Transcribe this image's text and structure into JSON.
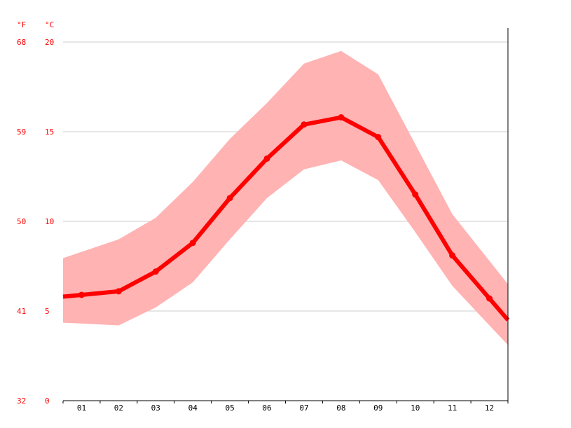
{
  "chart_data": {
    "type": "line",
    "unit_labels": {
      "fahrenheit": "°F",
      "celsius": "°C"
    },
    "y_ticks_celsius": [
      "0",
      "5",
      "10",
      "15",
      "20"
    ],
    "y_ticks_fahrenheit": [
      "32",
      "41",
      "50",
      "59",
      "68"
    ],
    "ylim": [
      0,
      20
    ],
    "categories": [
      "01",
      "02",
      "03",
      "04",
      "05",
      "06",
      "07",
      "08",
      "09",
      "10",
      "11",
      "12"
    ],
    "series": [
      {
        "values": [
          5.9,
          6.1,
          7.2,
          8.8,
          11.3,
          13.5,
          15.4,
          15.8,
          14.7,
          11.5,
          8.1,
          5.7
        ]
      }
    ],
    "range_band": {
      "max": [
        8.3,
        9.0,
        10.2,
        12.2,
        14.6,
        16.6,
        18.8,
        19.5,
        18.2,
        14.3,
        10.4,
        7.8
      ],
      "min": [
        4.3,
        4.2,
        5.2,
        6.6,
        9.0,
        11.3,
        12.9,
        13.4,
        12.3,
        9.4,
        6.4,
        4.2
      ]
    },
    "grid": true,
    "colors": {
      "line": "#ff0000",
      "band": "#ffb3b3",
      "grid": "#cccccc",
      "axis": "#000000",
      "label": "#ff0000",
      "tick_text": "#000000"
    }
  }
}
